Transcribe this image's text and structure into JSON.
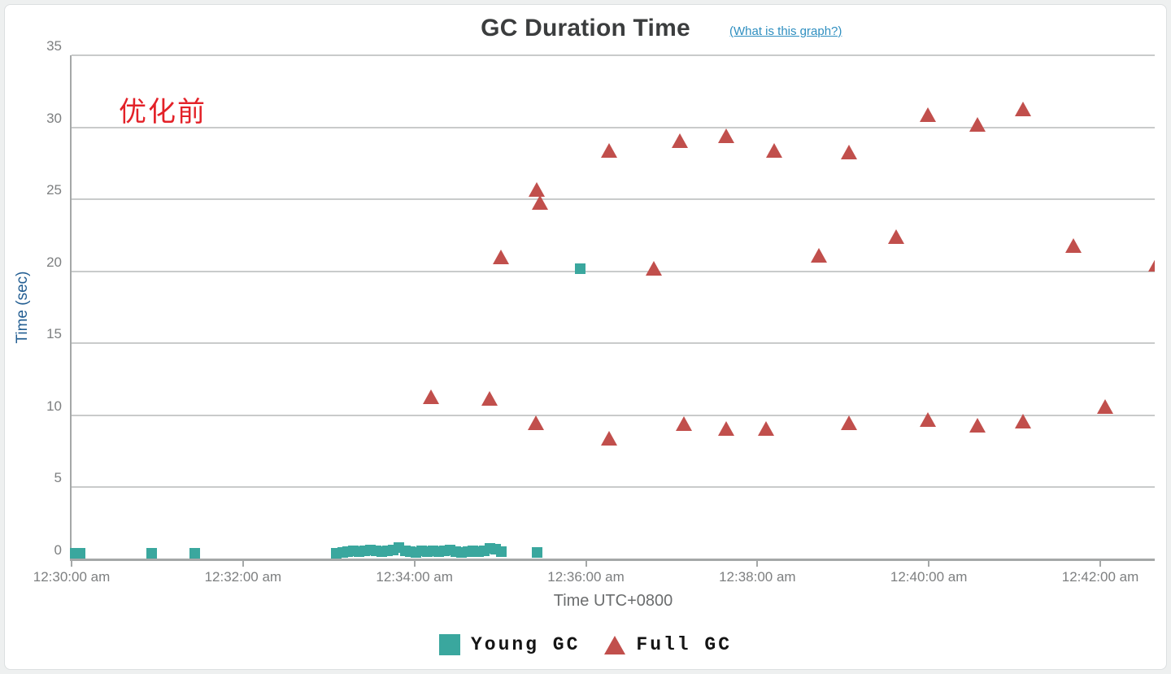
{
  "header": {
    "title": "GC Duration Time",
    "help_link": "(What is this graph?)"
  },
  "annotation": {
    "text": "优化前",
    "color": "#e32128"
  },
  "colors": {
    "young_gc": "#3aa79e",
    "full_gc": "#c14f4c",
    "gridline": "#c9cbcb",
    "axis": "#a5a8a8",
    "tick_label": "#7d7f80",
    "y_axis_title": "#235e92",
    "link": "#2f8fc0"
  },
  "chart_data": {
    "type": "scatter",
    "title": "GC Duration Time",
    "xlabel": "Time UTC+0800",
    "ylabel": "Time (sec)",
    "ylim": [
      0,
      35
    ],
    "y_ticks": [
      0,
      5,
      10,
      15,
      20,
      25,
      30,
      35
    ],
    "x_ticks": [
      {
        "t": 0,
        "label": "12:30:00 am"
      },
      {
        "t": 2,
        "label": "12:32:00 am"
      },
      {
        "t": 4,
        "label": "12:34:00 am"
      },
      {
        "t": 6,
        "label": "12:36:00 am"
      },
      {
        "t": 8,
        "label": "12:38:00 am"
      },
      {
        "t": 10,
        "label": "12:40:00 am"
      },
      {
        "t": 12,
        "label": "12:42:00 am"
      }
    ],
    "x_range_minutes": [
      0,
      12.64
    ],
    "grid": true,
    "legend_position": "bottom",
    "points_format": "[minutes_after_12:30:00_am, duration_seconds]",
    "series": [
      {
        "name": "Young GC",
        "marker": "square",
        "color": "#3aa79e",
        "points": [
          [
            0.04,
            0.4
          ],
          [
            0.1,
            0.4
          ],
          [
            0.93,
            0.4
          ],
          [
            1.44,
            0.4
          ],
          [
            3.09,
            0.45
          ],
          [
            3.16,
            0.5
          ],
          [
            3.22,
            0.55
          ],
          [
            3.29,
            0.6
          ],
          [
            3.35,
            0.55
          ],
          [
            3.42,
            0.6
          ],
          [
            3.49,
            0.65
          ],
          [
            3.55,
            0.6
          ],
          [
            3.62,
            0.55
          ],
          [
            3.69,
            0.6
          ],
          [
            3.75,
            0.65
          ],
          [
            3.82,
            0.8
          ],
          [
            3.89,
            0.6
          ],
          [
            3.95,
            0.55
          ],
          [
            4.02,
            0.5
          ],
          [
            4.08,
            0.6
          ],
          [
            4.15,
            0.55
          ],
          [
            4.22,
            0.6
          ],
          [
            4.28,
            0.55
          ],
          [
            4.35,
            0.6
          ],
          [
            4.42,
            0.65
          ],
          [
            4.48,
            0.55
          ],
          [
            4.55,
            0.5
          ],
          [
            4.62,
            0.55
          ],
          [
            4.68,
            0.6
          ],
          [
            4.75,
            0.55
          ],
          [
            4.81,
            0.6
          ],
          [
            4.88,
            0.75
          ],
          [
            4.95,
            0.7
          ],
          [
            5.01,
            0.55
          ],
          [
            5.43,
            0.5
          ],
          [
            5.93,
            20.2
          ]
        ]
      },
      {
        "name": "Full GC",
        "marker": "triangle",
        "color": "#c14f4c",
        "points": [
          [
            4.19,
            11.3
          ],
          [
            4.88,
            11.2
          ],
          [
            5.01,
            21.0
          ],
          [
            5.42,
            9.5
          ],
          [
            5.43,
            25.7
          ],
          [
            5.46,
            24.8
          ],
          [
            6.27,
            28.4
          ],
          [
            6.27,
            8.4
          ],
          [
            6.79,
            20.2
          ],
          [
            7.1,
            29.1
          ],
          [
            7.14,
            9.4
          ],
          [
            7.64,
            29.4
          ],
          [
            7.64,
            9.1
          ],
          [
            8.1,
            9.1
          ],
          [
            8.2,
            28.4
          ],
          [
            8.72,
            21.1
          ],
          [
            9.07,
            28.3
          ],
          [
            9.07,
            9.5
          ],
          [
            9.62,
            22.4
          ],
          [
            9.99,
            30.9
          ],
          [
            9.99,
            9.7
          ],
          [
            10.57,
            30.2
          ],
          [
            10.57,
            9.3
          ],
          [
            11.1,
            31.3
          ],
          [
            11.1,
            9.6
          ],
          [
            11.69,
            21.8
          ],
          [
            12.06,
            10.6
          ],
          [
            12.65,
            20.5
          ]
        ]
      }
    ]
  }
}
